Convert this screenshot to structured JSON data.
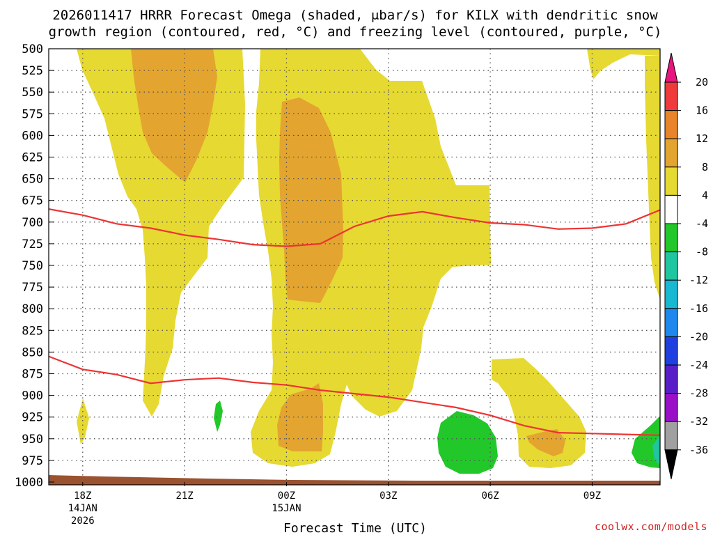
{
  "colors": {
    "shade_4_8": "#e6d932",
    "shade_8_12": "#e3a52f",
    "shade_m4_m8": "#22c82a",
    "shade_m8_m12": "#20c6a0",
    "dgz_contour": "#ee3333",
    "terrain": "#9a5230"
  },
  "chart_data": {
    "type": "time-height cross section",
    "title_line1": "2026011417 HRRR Forecast Omega (shaded, μbar/s) for KILX with dendritic snow",
    "title_line2": "growth region (contoured, red, °C) and freezing level (contoured, purple, °C)",
    "xlabel": "Forecast Time (UTC)",
    "ylabel": "",
    "y_axis": {
      "unit": "hPa",
      "inverted": true,
      "range": [
        1000,
        500
      ],
      "ticks": [
        500,
        525,
        550,
        575,
        600,
        625,
        650,
        675,
        700,
        725,
        750,
        775,
        800,
        825,
        850,
        875,
        900,
        925,
        950,
        975,
        1000
      ]
    },
    "x_axis": {
      "range_hours_after_18z_14jan": [
        -1,
        17
      ],
      "ticks": [
        {
          "hour": 0,
          "label": "18Z",
          "date": "14JAN",
          "year": "2026"
        },
        {
          "hour": 3,
          "label": "21Z",
          "date": "",
          "year": ""
        },
        {
          "hour": 6,
          "label": "00Z",
          "date": "15JAN",
          "year": ""
        },
        {
          "hour": 9,
          "label": "03Z",
          "date": "",
          "year": ""
        },
        {
          "hour": 12,
          "label": "06Z",
          "date": "",
          "year": ""
        },
        {
          "hour": 15,
          "label": "09Z",
          "date": "",
          "year": ""
        }
      ]
    },
    "grid": true,
    "colorbar": {
      "levels": [
        {
          "label": "20",
          "color": "#e8157e"
        },
        {
          "label": "16",
          "color": "#f0393a"
        },
        {
          "label": "12",
          "color": "#e8842a"
        },
        {
          "label": "8",
          "color": "#e3a52f"
        },
        {
          "label": "4",
          "color": "#e6d932"
        },
        {
          "label": "-4",
          "color": "#ffffff"
        },
        {
          "label": "-8",
          "color": "#22c82a"
        },
        {
          "label": "-12",
          "color": "#20c6a0"
        },
        {
          "label": "-16",
          "color": "#18b7d2"
        },
        {
          "label": "-20",
          "color": "#1e88ee"
        },
        {
          "label": "-24",
          "color": "#1f3fe0"
        },
        {
          "label": "-28",
          "color": "#5a1ec8"
        },
        {
          "label": "-32",
          "color": "#9a10c8"
        },
        {
          "label": "-36",
          "color": "#a0a0a0"
        }
      ],
      "bottom_extend_color": "#000000"
    },
    "contours": {
      "dgz_top_approx_hPa": [
        {
          "hour": -1,
          "p": 685
        },
        {
          "hour": 0,
          "p": 692
        },
        {
          "hour": 1,
          "p": 702
        },
        {
          "hour": 2,
          "p": 707
        },
        {
          "hour": 3,
          "p": 715
        },
        {
          "hour": 4,
          "p": 720
        },
        {
          "hour": 5,
          "p": 726
        },
        {
          "hour": 6,
          "p": 728
        },
        {
          "hour": 7,
          "p": 725
        },
        {
          "hour": 8,
          "p": 705
        },
        {
          "hour": 9,
          "p": 693
        },
        {
          "hour": 10,
          "p": 688
        },
        {
          "hour": 11,
          "p": 695
        },
        {
          "hour": 12,
          "p": 701
        },
        {
          "hour": 13,
          "p": 703
        },
        {
          "hour": 14,
          "p": 708
        },
        {
          "hour": 15,
          "p": 707
        },
        {
          "hour": 16,
          "p": 702
        },
        {
          "hour": 17,
          "p": 686
        }
      ],
      "dgz_bottom_approx_hPa": [
        {
          "hour": -1,
          "p": 855
        },
        {
          "hour": 0,
          "p": 870
        },
        {
          "hour": 1,
          "p": 876
        },
        {
          "hour": 2,
          "p": 886
        },
        {
          "hour": 3,
          "p": 882
        },
        {
          "hour": 4,
          "p": 880
        },
        {
          "hour": 5,
          "p": 885
        },
        {
          "hour": 6,
          "p": 888
        },
        {
          "hour": 7,
          "p": 894
        },
        {
          "hour": 8,
          "p": 898
        },
        {
          "hour": 9,
          "p": 902
        },
        {
          "hour": 10,
          "p": 908
        },
        {
          "hour": 11,
          "p": 914
        },
        {
          "hour": 12,
          "p": 923
        },
        {
          "hour": 13,
          "p": 935
        },
        {
          "hour": 14,
          "p": 943
        },
        {
          "hour": 15,
          "p": 944
        },
        {
          "hour": 16,
          "p": 945
        },
        {
          "hour": 17,
          "p": 946
        }
      ]
    },
    "credit": "coolwx.com/models"
  }
}
